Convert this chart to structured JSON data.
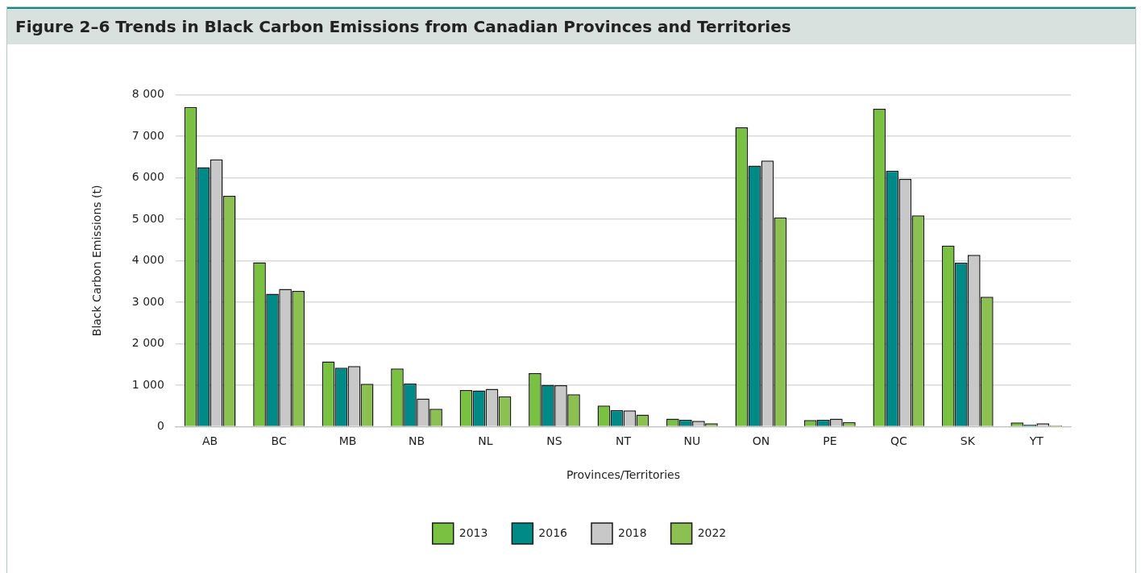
{
  "chart_data": {
    "type": "bar",
    "title": "Figure 2–6 Trends in Black Carbon Emissions from Canadian Provinces and Territories",
    "xlabel": "Provinces/Territories",
    "ylabel": "Black Carbon Emissions (t)",
    "categories": [
      "AB",
      "BC",
      "MB",
      "NB",
      "NL",
      "NS",
      "NT",
      "NU",
      "ON",
      "PE",
      "QC",
      "SK",
      "YT"
    ],
    "series": [
      {
        "name": "2013",
        "color": "#7ac142",
        "values": [
          7700,
          3960,
          1570,
          1400,
          880,
          1290,
          510,
          190,
          7210,
          160,
          7660,
          4360,
          100
        ]
      },
      {
        "name": "2016",
        "color": "#008a87",
        "values": [
          6250,
          3200,
          1420,
          1040,
          870,
          1010,
          400,
          170,
          6290,
          170,
          6170,
          3950,
          50
        ]
      },
      {
        "name": "2018",
        "color": "#c8c8c8",
        "values": [
          6440,
          3320,
          1460,
          680,
          910,
          1000,
          390,
          140,
          6410,
          190,
          5970,
          4140,
          80
        ]
      },
      {
        "name": "2022",
        "color": "#8cc152",
        "values": [
          5560,
          3270,
          1030,
          430,
          730,
          780,
          290,
          80,
          5040,
          110,
          5090,
          3130,
          30
        ]
      }
    ],
    "ylim": [
      0,
      8000
    ],
    "yticks": [
      0,
      {
        "value": 1000,
        "label": "1 000"
      },
      {
        "value": 2000,
        "label": "2 000"
      },
      {
        "value": 3000,
        "label": "3 000"
      },
      {
        "value": 4000,
        "label": "4 000"
      },
      {
        "value": 5000,
        "label": "5 000"
      },
      {
        "value": 6000,
        "label": "6 000"
      },
      {
        "value": 7000,
        "label": "7 000"
      },
      {
        "value": 8000,
        "label": "8 000"
      }
    ],
    "grid": "y",
    "legend": "bottom"
  }
}
